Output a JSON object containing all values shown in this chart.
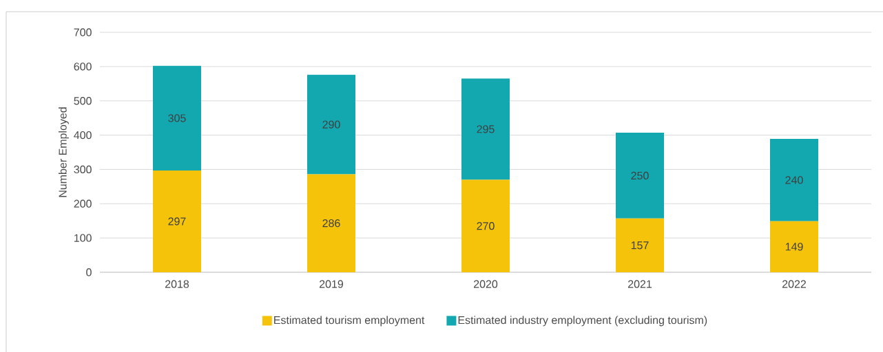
{
  "chart_data": {
    "type": "bar",
    "stacked": true,
    "ylabel": "Number Employed",
    "categories": [
      "2018",
      "2019",
      "2020",
      "2021",
      "2022"
    ],
    "series": [
      {
        "name": "Estimated tourism employment",
        "color": "#f5c40a",
        "values": [
          297,
          286,
          270,
          157,
          149
        ]
      },
      {
        "name": "Estimated industry employment (excluding tourism)",
        "color": "#13a8b0",
        "values": [
          305,
          290,
          295,
          250,
          240
        ]
      }
    ],
    "ylim": [
      0,
      700
    ],
    "yticks": [
      0,
      100,
      200,
      300,
      400,
      500,
      600,
      700
    ],
    "grid": "y",
    "legend": "bottom",
    "data_labels": true
  }
}
